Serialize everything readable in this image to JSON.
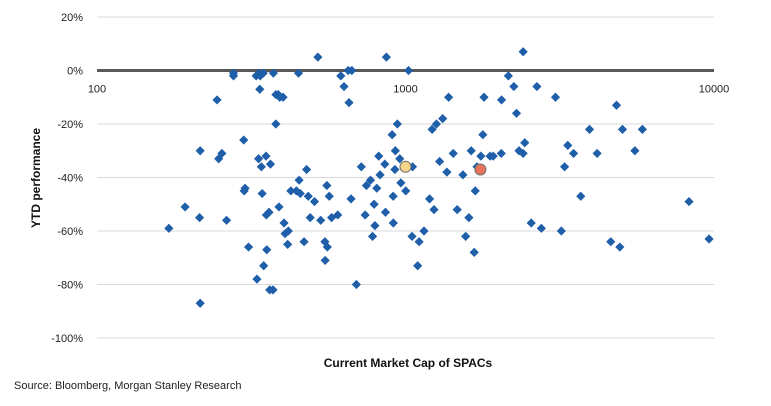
{
  "chart_data": {
    "type": "scatter",
    "xlabel": "Current Market Cap of SPACs",
    "ylabel": "YTD performance",
    "x_scale": "log",
    "xlim": [
      100,
      10000
    ],
    "ylim": [
      -100,
      20
    ],
    "x_ticks": [
      100,
      1000,
      10000
    ],
    "x_tick_labels": [
      "100",
      "1000",
      "10000"
    ],
    "y_ticks": [
      20,
      0,
      -20,
      -40,
      -60,
      -80,
      -100
    ],
    "y_tick_labels": [
      "20%",
      "0%",
      "-20%",
      "-40%",
      "-60%",
      "-80%",
      "-100%"
    ],
    "grid": "horizontal",
    "series": [
      {
        "marker": "diamond",
        "color": "#1f5ea8",
        "points": [
          [
            171,
            -59
          ],
          [
            193,
            -51
          ],
          [
            216,
            -30
          ],
          [
            215,
            -55
          ],
          [
            216,
            -87
          ],
          [
            245,
            -11
          ],
          [
            248,
            -33
          ],
          [
            254,
            -31
          ],
          [
            263,
            -56
          ],
          [
            277,
            -2
          ],
          [
            277,
            -1
          ],
          [
            299,
            -26
          ],
          [
            300,
            -45
          ],
          [
            302,
            -44
          ],
          [
            310,
            -66
          ],
          [
            328,
            -2
          ],
          [
            335,
            -1
          ],
          [
            338,
            -2
          ],
          [
            337,
            -7
          ],
          [
            346,
            -1
          ],
          [
            330,
            -78
          ],
          [
            343,
            -46
          ],
          [
            347,
            -73
          ],
          [
            354,
            -54
          ],
          [
            355,
            -67
          ],
          [
            361,
            -53
          ],
          [
            363,
            -82
          ],
          [
            372,
            -82
          ],
          [
            373,
            -1
          ],
          [
            380,
            -9
          ],
          [
            387,
            -9
          ],
          [
            391,
            -10
          ],
          [
            401,
            -10
          ],
          [
            334,
            -33
          ],
          [
            341,
            -36
          ],
          [
            353,
            -32
          ],
          [
            365,
            -35
          ],
          [
            380,
            -20
          ],
          [
            389,
            -51
          ],
          [
            404,
            -57
          ],
          [
            407,
            -61
          ],
          [
            417,
            -60
          ],
          [
            425,
            -45
          ],
          [
            415,
            -65
          ],
          [
            443,
            -45
          ],
          [
            456,
            -46
          ],
          [
            452,
            -41
          ],
          [
            478,
            -37
          ],
          [
            484,
            -47
          ],
          [
            491,
            -55
          ],
          [
            507,
            -49
          ],
          [
            469,
            -64
          ],
          [
            450,
            -1
          ],
          [
            520,
            5
          ],
          [
            531,
            -56
          ],
          [
            548,
            -64
          ],
          [
            556,
            -43
          ],
          [
            566,
            -47
          ],
          [
            576,
            -55
          ],
          [
            549,
            -71
          ],
          [
            558,
            -66
          ],
          [
            603,
            -54
          ],
          [
            617,
            -2
          ],
          [
            632,
            -6
          ],
          [
            652,
            0
          ],
          [
            656,
            -12
          ],
          [
            666,
            -48
          ],
          [
            670,
            0
          ],
          [
            693,
            -80
          ],
          [
            719,
            -36
          ],
          [
            740,
            -54
          ],
          [
            747,
            -43
          ],
          [
            770,
            -41
          ],
          [
            782,
            -62
          ],
          [
            791,
            -50
          ],
          [
            796,
            -58
          ],
          [
            807,
            -44
          ],
          [
            819,
            -32
          ],
          [
            827,
            -39
          ],
          [
            857,
            -35
          ],
          [
            861,
            -53
          ],
          [
            867,
            5
          ],
          [
            905,
            -24
          ],
          [
            912,
            -47
          ],
          [
            913,
            -57
          ],
          [
            924,
            -37
          ],
          [
            927,
            -30
          ],
          [
            941,
            -20
          ],
          [
            958,
            -33
          ],
          [
            966,
            -42
          ],
          [
            1002,
            -45
          ],
          [
            1023,
            0
          ],
          [
            1050,
            -62
          ],
          [
            1054,
            -36
          ],
          [
            1095,
            -73
          ],
          [
            1107,
            -64
          ],
          [
            1148,
            -60
          ],
          [
            1197,
            -48
          ],
          [
            1220,
            -22
          ],
          [
            1237,
            -52
          ],
          [
            1260,
            -20
          ],
          [
            1290,
            -34
          ],
          [
            1320,
            -18
          ],
          [
            1362,
            -38
          ],
          [
            1380,
            -10
          ],
          [
            1428,
            -31
          ],
          [
            1471,
            -52
          ],
          [
            1535,
            -39
          ],
          [
            1567,
            -62
          ],
          [
            1605,
            -55
          ],
          [
            1633,
            -30
          ],
          [
            1670,
            -68
          ],
          [
            1683,
            -45
          ],
          [
            1705,
            -36
          ],
          [
            1755,
            -32
          ],
          [
            1781,
            -24
          ],
          [
            1797,
            -10
          ],
          [
            1880,
            -32
          ],
          [
            1924,
            -32
          ],
          [
            2044,
            -31
          ],
          [
            2048,
            -11
          ],
          [
            2155,
            -2
          ],
          [
            2245,
            -6
          ],
          [
            2290,
            -16
          ],
          [
            2333,
            -30
          ],
          [
            2406,
            -31
          ],
          [
            2406,
            7
          ],
          [
            2435,
            -27
          ],
          [
            2556,
            -57
          ],
          [
            2666,
            -6
          ],
          [
            2757,
            -59
          ],
          [
            3063,
            -10
          ],
          [
            3200,
            -60
          ],
          [
            3279,
            -36
          ],
          [
            3357,
            -28
          ],
          [
            3506,
            -31
          ],
          [
            3699,
            -47
          ],
          [
            3949,
            -22
          ],
          [
            4180,
            -31
          ],
          [
            4627,
            -64
          ],
          [
            4830,
            -13
          ],
          [
            4951,
            -66
          ],
          [
            5051,
            -22
          ],
          [
            5540,
            -30
          ],
          [
            5860,
            -22
          ],
          [
            8300,
            -49
          ],
          [
            9640,
            -63
          ]
        ]
      },
      {
        "marker": "circle",
        "color": "#f4d58a",
        "points": [
          [
            1000,
            -36
          ]
        ]
      },
      {
        "marker": "circle",
        "color": "#e8735a",
        "points": [
          [
            1749,
            -37
          ]
        ]
      }
    ]
  },
  "source_text": "Source: Bloomberg, Morgan Stanley Research"
}
